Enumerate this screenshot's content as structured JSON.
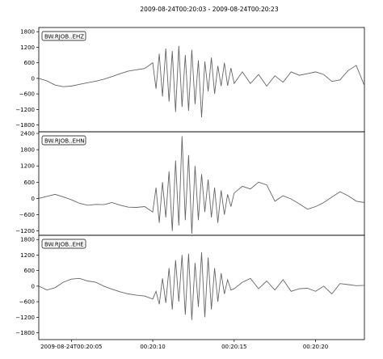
{
  "figure": {
    "title": "2009-08-24T00:20:03  -  2009-08-24T00:20:23"
  },
  "chart_data": [
    {
      "type": "line",
      "legend": "BW.RJOB..EHZ",
      "legend_position": "top-left",
      "ylim": [
        -2000,
        1900
      ],
      "yticks": [
        -1800,
        -1200,
        -600,
        0,
        600,
        1200,
        1800
      ],
      "xlim": [
        0,
        20
      ],
      "grid": false,
      "color": "#666666",
      "series": [
        {
          "x": [
            0,
            0.5,
            1,
            1.5,
            2,
            2.5,
            3,
            3.5,
            4,
            4.5,
            5,
            5.5,
            6,
            6.5,
            7,
            7.2,
            7.4,
            7.6,
            7.8,
            8,
            8.2,
            8.4,
            8.6,
            8.8,
            9,
            9.2,
            9.4,
            9.6,
            9.8,
            10,
            10.2,
            10.4,
            10.6,
            10.8,
            11,
            11.2,
            11.4,
            11.6,
            11.8,
            12,
            12.5,
            13,
            13.5,
            14,
            14.5,
            15,
            15.5,
            16,
            16.5,
            17,
            17.5,
            18,
            18.5,
            19,
            19.5,
            20
          ],
          "y": [
            0,
            -100,
            -260,
            -320,
            -300,
            -230,
            -170,
            -110,
            -30,
            70,
            180,
            280,
            330,
            380,
            600,
            -400,
            950,
            -700,
            1150,
            -900,
            1050,
            -1300,
            1250,
            -1100,
            900,
            -1250,
            1100,
            -1000,
            700,
            -1500,
            650,
            -500,
            800,
            -600,
            480,
            -300,
            600,
            -280,
            400,
            -200,
            250,
            -200,
            150,
            -300,
            100,
            -150,
            250,
            120,
            180,
            250,
            150,
            -120,
            -60,
            300,
            500,
            -280
          ]
        }
      ]
    },
    {
      "type": "line",
      "legend": "BW.RJOB..EHN",
      "legend_position": "top-left",
      "ylim": [
        -1300,
        2400
      ],
      "yticks": [
        -1200,
        -600,
        0,
        600,
        1200,
        1800,
        2400
      ],
      "xlim": [
        0,
        20
      ],
      "grid": false,
      "color": "#666666",
      "series": [
        {
          "x": [
            0,
            0.5,
            1,
            1.5,
            2,
            2.5,
            3,
            3.5,
            4,
            4.5,
            5,
            5.5,
            6,
            6.5,
            7,
            7.2,
            7.4,
            7.6,
            7.8,
            8,
            8.2,
            8.4,
            8.6,
            8.8,
            9,
            9.2,
            9.4,
            9.6,
            9.8,
            10,
            10.2,
            10.4,
            10.6,
            10.8,
            11,
            11.2,
            11.4,
            11.6,
            11.8,
            12,
            12.5,
            13,
            13.5,
            14,
            14.5,
            15,
            15.5,
            16,
            16.5,
            17,
            17.5,
            18,
            18.5,
            19,
            19.5,
            20
          ],
          "y": [
            0,
            80,
            150,
            60,
            -50,
            -180,
            -250,
            -220,
            -230,
            -150,
            -250,
            -320,
            -330,
            -300,
            -500,
            400,
            -900,
            600,
            -700,
            1000,
            -1200,
            1400,
            -1000,
            2300,
            -800,
            1600,
            -1300,
            1200,
            -800,
            900,
            -500,
            700,
            -700,
            400,
            -900,
            300,
            -600,
            150,
            -300,
            200,
            450,
            350,
            600,
            500,
            -100,
            100,
            -20,
            -200,
            -400,
            -300,
            -150,
            50,
            250,
            100,
            -100,
            -150
          ]
        }
      ]
    },
    {
      "type": "line",
      "legend": "BW.RJOB..EHE",
      "legend_position": "top-left",
      "ylim": [
        -2000,
        1900
      ],
      "yticks": [
        -1800,
        -1200,
        -600,
        0,
        600,
        1200,
        1800
      ],
      "xlim": [
        0,
        20
      ],
      "grid": false,
      "color": "#666666",
      "series": [
        {
          "x": [
            0,
            0.5,
            1,
            1.5,
            2,
            2.5,
            3,
            3.5,
            4,
            4.5,
            5,
            5.5,
            6,
            6.5,
            7,
            7.2,
            7.4,
            7.6,
            7.8,
            8,
            8.2,
            8.4,
            8.6,
            8.8,
            9,
            9.2,
            9.4,
            9.6,
            9.8,
            10,
            10.2,
            10.4,
            10.6,
            10.8,
            11,
            11.2,
            11.4,
            11.6,
            11.8,
            12,
            12.5,
            13,
            13.5,
            14,
            14.5,
            15,
            15.5,
            16,
            16.5,
            17,
            17.5,
            18,
            18.5,
            19,
            19.5,
            20
          ],
          "y": [
            0,
            -150,
            -60,
            150,
            270,
            300,
            200,
            150,
            0,
            -120,
            -220,
            -300,
            -350,
            -380,
            -500,
            -200,
            -700,
            300,
            -650,
            700,
            -900,
            1000,
            -600,
            1200,
            -1100,
            1250,
            -1300,
            900,
            -800,
            1300,
            -1200,
            1100,
            -900,
            700,
            -600,
            500,
            -300,
            250,
            -150,
            -100,
            150,
            300,
            -100,
            200,
            -150,
            250,
            -200,
            -100,
            -80,
            -200,
            0,
            -300,
            100,
            60,
            20,
            30
          ]
        }
      ]
    }
  ],
  "shared_x_axis": {
    "tick_labels": [
      "2009-08-24T00:20:05",
      "00:20:10",
      "00:20:15",
      "00:20:20"
    ],
    "tick_values": [
      2,
      7,
      12,
      17
    ]
  }
}
